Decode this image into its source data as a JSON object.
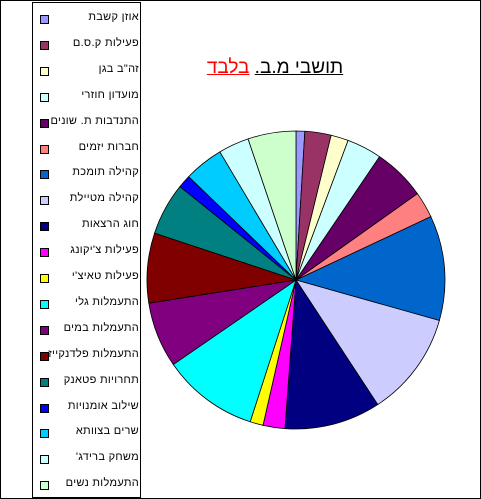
{
  "chart_data": {
    "type": "pie",
    "title_parts": [
      "תושבי מ.ב.",
      "בלבד"
    ],
    "title_colors": [
      "#000000",
      "#ff0000"
    ],
    "categories": [
      "אוזן קשבת",
      "פעילות ק.ס.ם",
      "זה\"ב בגן",
      "מועדון חוזרי",
      "התנדבות ת. שונים",
      "חברות יזמים",
      "קהילה תומכת",
      "קהילה מטיילת",
      "חוג הרצאות",
      "פעילות צ'יקונג",
      "פעילות טאיצ'י",
      "התעמלות גלי",
      "התעמלות במים",
      "התעמלות פלדנקייז",
      "תחרויות פטאנק",
      "שילוב אומנויות",
      "שרים בצוותא",
      "משחק ברידג'",
      "התעמלות נשים"
    ],
    "values": [
      1.0,
      3.0,
      2.0,
      4.0,
      6.0,
      3.0,
      12.0,
      12.0,
      11.0,
      2.5,
      1.5,
      11.0,
      7.5,
      8.0,
      6.0,
      1.5,
      4.5,
      3.5,
      5.5
    ],
    "colors": [
      "#9999ff",
      "#993366",
      "#ffffcc",
      "#ccffff",
      "#660066",
      "#ff8080",
      "#0066cc",
      "#ccccff",
      "#000080",
      "#ff00ff",
      "#ffff00",
      "#00ffff",
      "#800080",
      "#800000",
      "#008080",
      "#0000ff",
      "#00ccff",
      "#ccffff",
      "#ccffcc"
    ],
    "legend_position": "left"
  }
}
